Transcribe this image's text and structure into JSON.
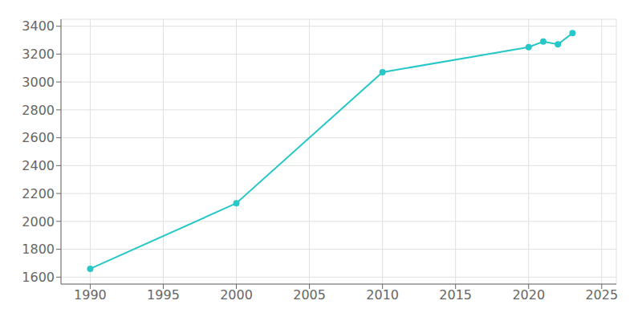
{
  "chart_data": {
    "type": "line",
    "x": [
      1990,
      2000,
      2010,
      2020,
      2021,
      2022,
      2023
    ],
    "values": [
      1660,
      2130,
      3070,
      3250,
      3290,
      3270,
      3350
    ],
    "color": "#28c8c8",
    "marker": "circle",
    "xlim": [
      1988,
      2026
    ],
    "xticks": [
      1990,
      1995,
      2000,
      2005,
      2010,
      2015,
      2020,
      2025
    ],
    "ylim": [
      1550,
      3450
    ],
    "yticks": [
      1600,
      1800,
      2000,
      2200,
      2400,
      2600,
      2800,
      3000,
      3200,
      3400
    ],
    "grid": true
  }
}
